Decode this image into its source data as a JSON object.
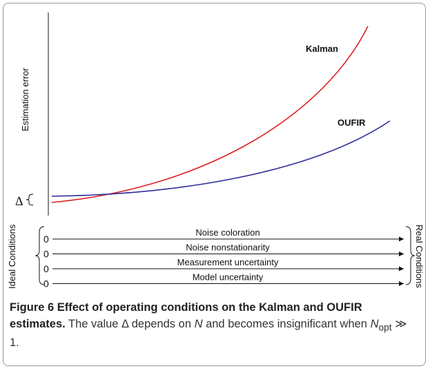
{
  "figure": {
    "y_axis_label": "Estimation error",
    "curves": [
      {
        "label": "Kalman"
      },
      {
        "label": "OUFIR"
      }
    ],
    "delta_label": "Δ",
    "left_label": "Ideal Conditions",
    "right_label": "Real Conditions",
    "conditions": [
      {
        "start": "0",
        "label": "Noise coloration"
      },
      {
        "start": "0",
        "label": "Noise nonstationarity"
      },
      {
        "start": "0",
        "label": "Measurement uncertainty"
      },
      {
        "start": "0",
        "label": "Model uncertainty"
      }
    ]
  },
  "caption": {
    "title": "Figure 6 Effect of operating conditions on the Kalman and OUFIR estimates.",
    "parts": [
      " The value Δ depends on ",
      "N",
      " and becomes insignificant when ",
      "N",
      "opt",
      " ≫ 1."
    ]
  }
}
